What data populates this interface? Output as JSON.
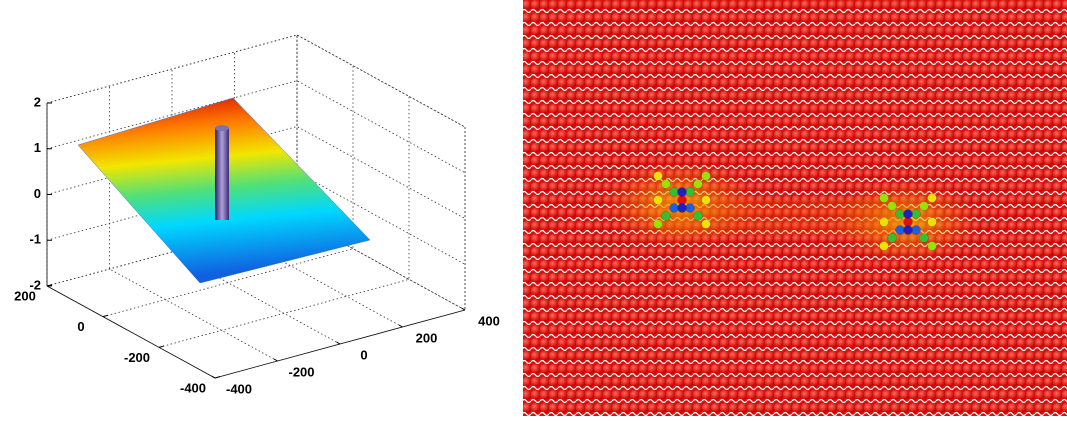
{
  "chart_data": {
    "type": "surface",
    "xlim": [
      -400,
      400
    ],
    "xticks": [
      -400,
      -200,
      0,
      200,
      400
    ],
    "ylim": [
      -400,
      200
    ],
    "yticks": [
      -400,
      -200,
      0,
      200
    ],
    "zlim": [
      -2,
      2
    ],
    "zticks": [
      -2,
      -1,
      0,
      1,
      2
    ],
    "grid": true
  }
}
